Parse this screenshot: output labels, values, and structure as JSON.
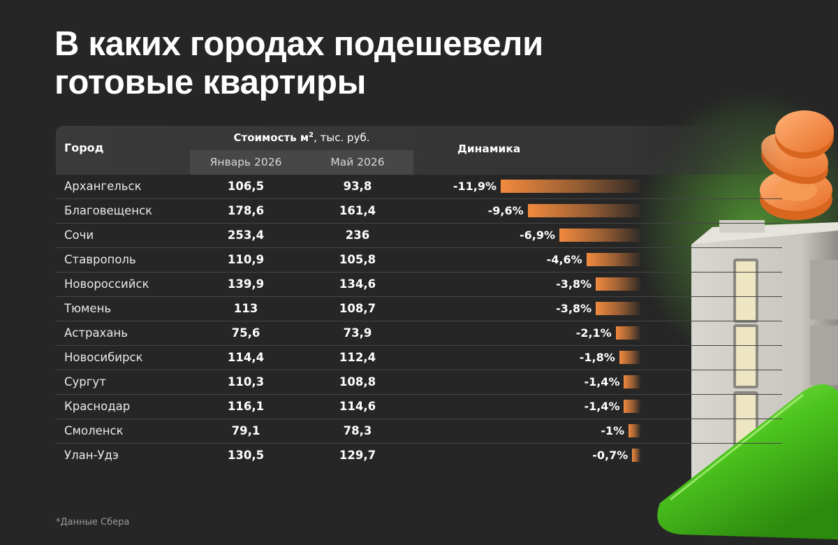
{
  "title_line1": "В каких городах подешевели",
  "title_line2": "готовые квартиры",
  "header": {
    "city": "Город",
    "cost_main": "Стоимость м",
    "cost_sup": "2",
    "cost_unit": ", тыс. руб.",
    "jan": "Январь 2026",
    "may": "Май 2026",
    "dynamics": "Динамика"
  },
  "footnote": "*Данные Сбера",
  "colors": {
    "bar_start": "#f28a3e",
    "background": "#262626",
    "accent_green": "#4cc41e"
  },
  "chart_data": {
    "type": "table",
    "columns": [
      "Город",
      "Январь 2026",
      "Май 2026",
      "Динамика"
    ],
    "unit": "тыс. руб. за м²",
    "rows": [
      {
        "city": "Архангельск",
        "jan": "106,5",
        "may": "93,8",
        "dyn_label": "-11,9%",
        "dyn": -11.9
      },
      {
        "city": "Благовещенск",
        "jan": "178,6",
        "may": "161,4",
        "dyn_label": "-9,6%",
        "dyn": -9.6
      },
      {
        "city": "Сочи",
        "jan": "253,4",
        "may": "236",
        "dyn_label": "-6,9%",
        "dyn": -6.9
      },
      {
        "city": "Ставрополь",
        "jan": "110,9",
        "may": "105,8",
        "dyn_label": "-4,6%",
        "dyn": -4.6
      },
      {
        "city": "Новороссийск",
        "jan": "139,9",
        "may": "134,6",
        "dyn_label": "-3,8%",
        "dyn": -3.8
      },
      {
        "city": "Тюмень",
        "jan": "113",
        "may": "108,7",
        "dyn_label": "-3,8%",
        "dyn": -3.8
      },
      {
        "city": "Астрахань",
        "jan": "75,6",
        "may": "73,9",
        "dyn_label": "-2,1%",
        "dyn": -2.1
      },
      {
        "city": "Новосибирск",
        "jan": "114,4",
        "may": "112,4",
        "dyn_label": "-1,8%",
        "dyn": -1.8
      },
      {
        "city": "Сургут",
        "jan": "110,3",
        "may": "108,8",
        "dyn_label": "-1,4%",
        "dyn": -1.4
      },
      {
        "city": "Краснодар",
        "jan": "116,1",
        "may": "114,6",
        "dyn_label": "-1,4%",
        "dyn": -1.4
      },
      {
        "city": "Смоленск",
        "jan": "79,1",
        "may": "78,3",
        "dyn_label": "-1%",
        "dyn": -1.0
      },
      {
        "city": "Улан-Удэ",
        "jan": "130,5",
        "may": "129,7",
        "dyn_label": "-0,7%",
        "dyn": -0.7
      }
    ]
  }
}
